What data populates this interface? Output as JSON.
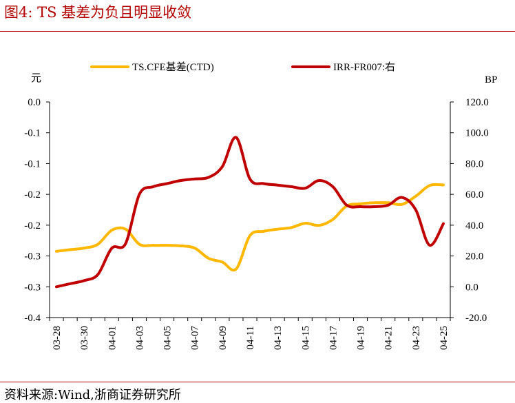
{
  "title": "图4:   TS 基差为负且明显收敛",
  "source": "资料来源:Wind,浙商证券研究所",
  "colors": {
    "accent": "#b30000",
    "series_left": "#FFB800",
    "series_right": "#C00000"
  },
  "chart_data": {
    "type": "line",
    "x": [
      "03-28",
      "03-29",
      "03-30",
      "03-31",
      "04-01",
      "04-02",
      "04-03",
      "04-04",
      "04-05",
      "04-06",
      "04-07",
      "04-08",
      "04-09",
      "04-10",
      "04-11",
      "04-12",
      "04-13",
      "04-14",
      "04-15",
      "04-16",
      "04-17",
      "04-18",
      "04-19",
      "04-20",
      "04-21",
      "04-22",
      "04-23",
      "04-24",
      "04-25"
    ],
    "x_tick_labels": [
      "03-28",
      "03-30",
      "04-01",
      "04-03",
      "04-05",
      "04-07",
      "04-09",
      "04-11",
      "04-13",
      "04-15",
      "04-17",
      "04-19",
      "04-21",
      "04-23",
      "04-25"
    ],
    "left_axis": {
      "unit": "元",
      "tick_labels": [
        "0.0",
        "-0.1",
        "-0.1",
        "-0.2",
        "-0.2",
        "-0.3",
        "-0.3",
        "-0.4"
      ],
      "min": -0.4,
      "max": 0.0
    },
    "right_axis": {
      "unit": "BP",
      "tick_labels": [
        "120.0",
        "100.0",
        "80.0",
        "60.0",
        "40.0",
        "20.0",
        "0.0",
        "-20.0"
      ],
      "min": -20,
      "max": 120
    },
    "series": [
      {
        "name": "TS.CFE基差(CTD)",
        "axis": "left",
        "values": [
          -0.277,
          -0.274,
          -0.271,
          -0.264,
          -0.238,
          -0.236,
          -0.264,
          -0.266,
          -0.266,
          -0.267,
          -0.271,
          -0.29,
          -0.297,
          -0.31,
          -0.248,
          -0.24,
          -0.236,
          -0.233,
          -0.225,
          -0.229,
          -0.218,
          -0.193,
          -0.189,
          -0.187,
          -0.187,
          -0.19,
          -0.175,
          -0.155,
          -0.154
        ]
      },
      {
        "name": "IRR-FR007:右",
        "axis": "right",
        "values": [
          0,
          2,
          4,
          8,
          25,
          28,
          60,
          65,
          67,
          69,
          70,
          71,
          78,
          97,
          70,
          67,
          66,
          65,
          64,
          69,
          65,
          53,
          52,
          52,
          53,
          58,
          50,
          27,
          41
        ]
      }
    ],
    "legend": "top",
    "grid": false
  }
}
